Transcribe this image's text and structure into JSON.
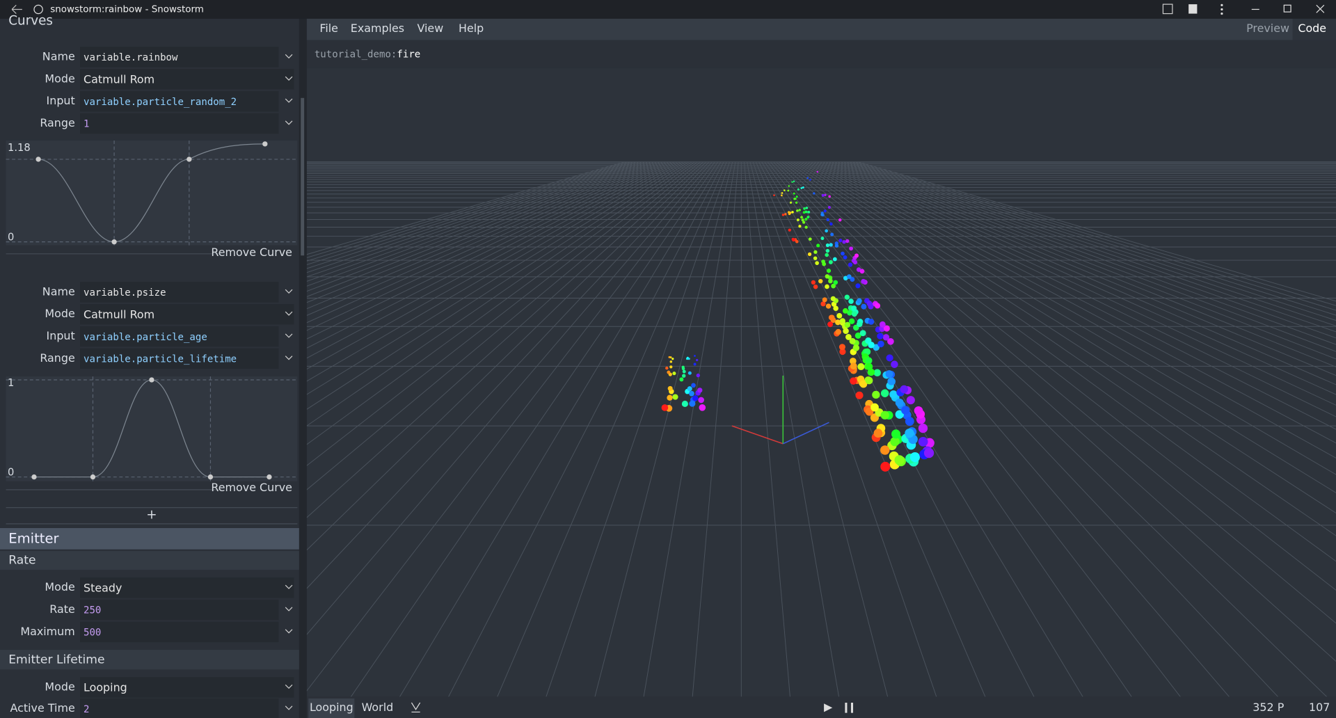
{
  "window": {
    "title": "snowstorm:rainbow - Snowstorm"
  },
  "menu": [
    "File",
    "Examples",
    "View",
    "Help"
  ],
  "tabs": [
    "Preview",
    "Code"
  ],
  "viewport": {
    "file_prefix": "tutorial_demo:",
    "file_name": "fire"
  },
  "sidebar": {
    "curves": {
      "heading": "Curves",
      "items": [
        {
          "fields": [
            {
              "label": "Name",
              "value": "variable.rainbow"
            },
            {
              "label": "Mode",
              "value": "Catmull Rom"
            },
            {
              "label": "Input",
              "value": "variable.particle_random_2"
            },
            {
              "label": "Range",
              "value": "1"
            }
          ],
          "graph": {
            "max": "1.18",
            "min": "0"
          },
          "remove": "Remove Curve"
        },
        {
          "fields": [
            {
              "label": "Name",
              "value": "variable.psize"
            },
            {
              "label": "Mode",
              "value": "Catmull Rom"
            },
            {
              "label": "Input",
              "value": "variable.particle_age"
            },
            {
              "label": "Range",
              "value": "variable.particle_lifetime"
            }
          ],
          "graph": {
            "max": "1",
            "min": "0"
          },
          "remove": "Remove Curve"
        }
      ],
      "add": "+"
    },
    "emitter": {
      "heading": "Emitter",
      "rate": {
        "heading": "Rate",
        "fields": [
          {
            "label": "Mode",
            "value": "Steady"
          },
          {
            "label": "Rate",
            "value": "250"
          },
          {
            "label": "Maximum",
            "value": "500"
          }
        ]
      },
      "lifetime": {
        "heading": "Emitter Lifetime",
        "fields": [
          {
            "label": "Mode",
            "value": "Looping"
          },
          {
            "label": "Active Time",
            "value": "2"
          }
        ]
      }
    }
  },
  "status": {
    "modes": [
      "Looping",
      "World"
    ],
    "particles": "352 P",
    "fps": "107"
  }
}
